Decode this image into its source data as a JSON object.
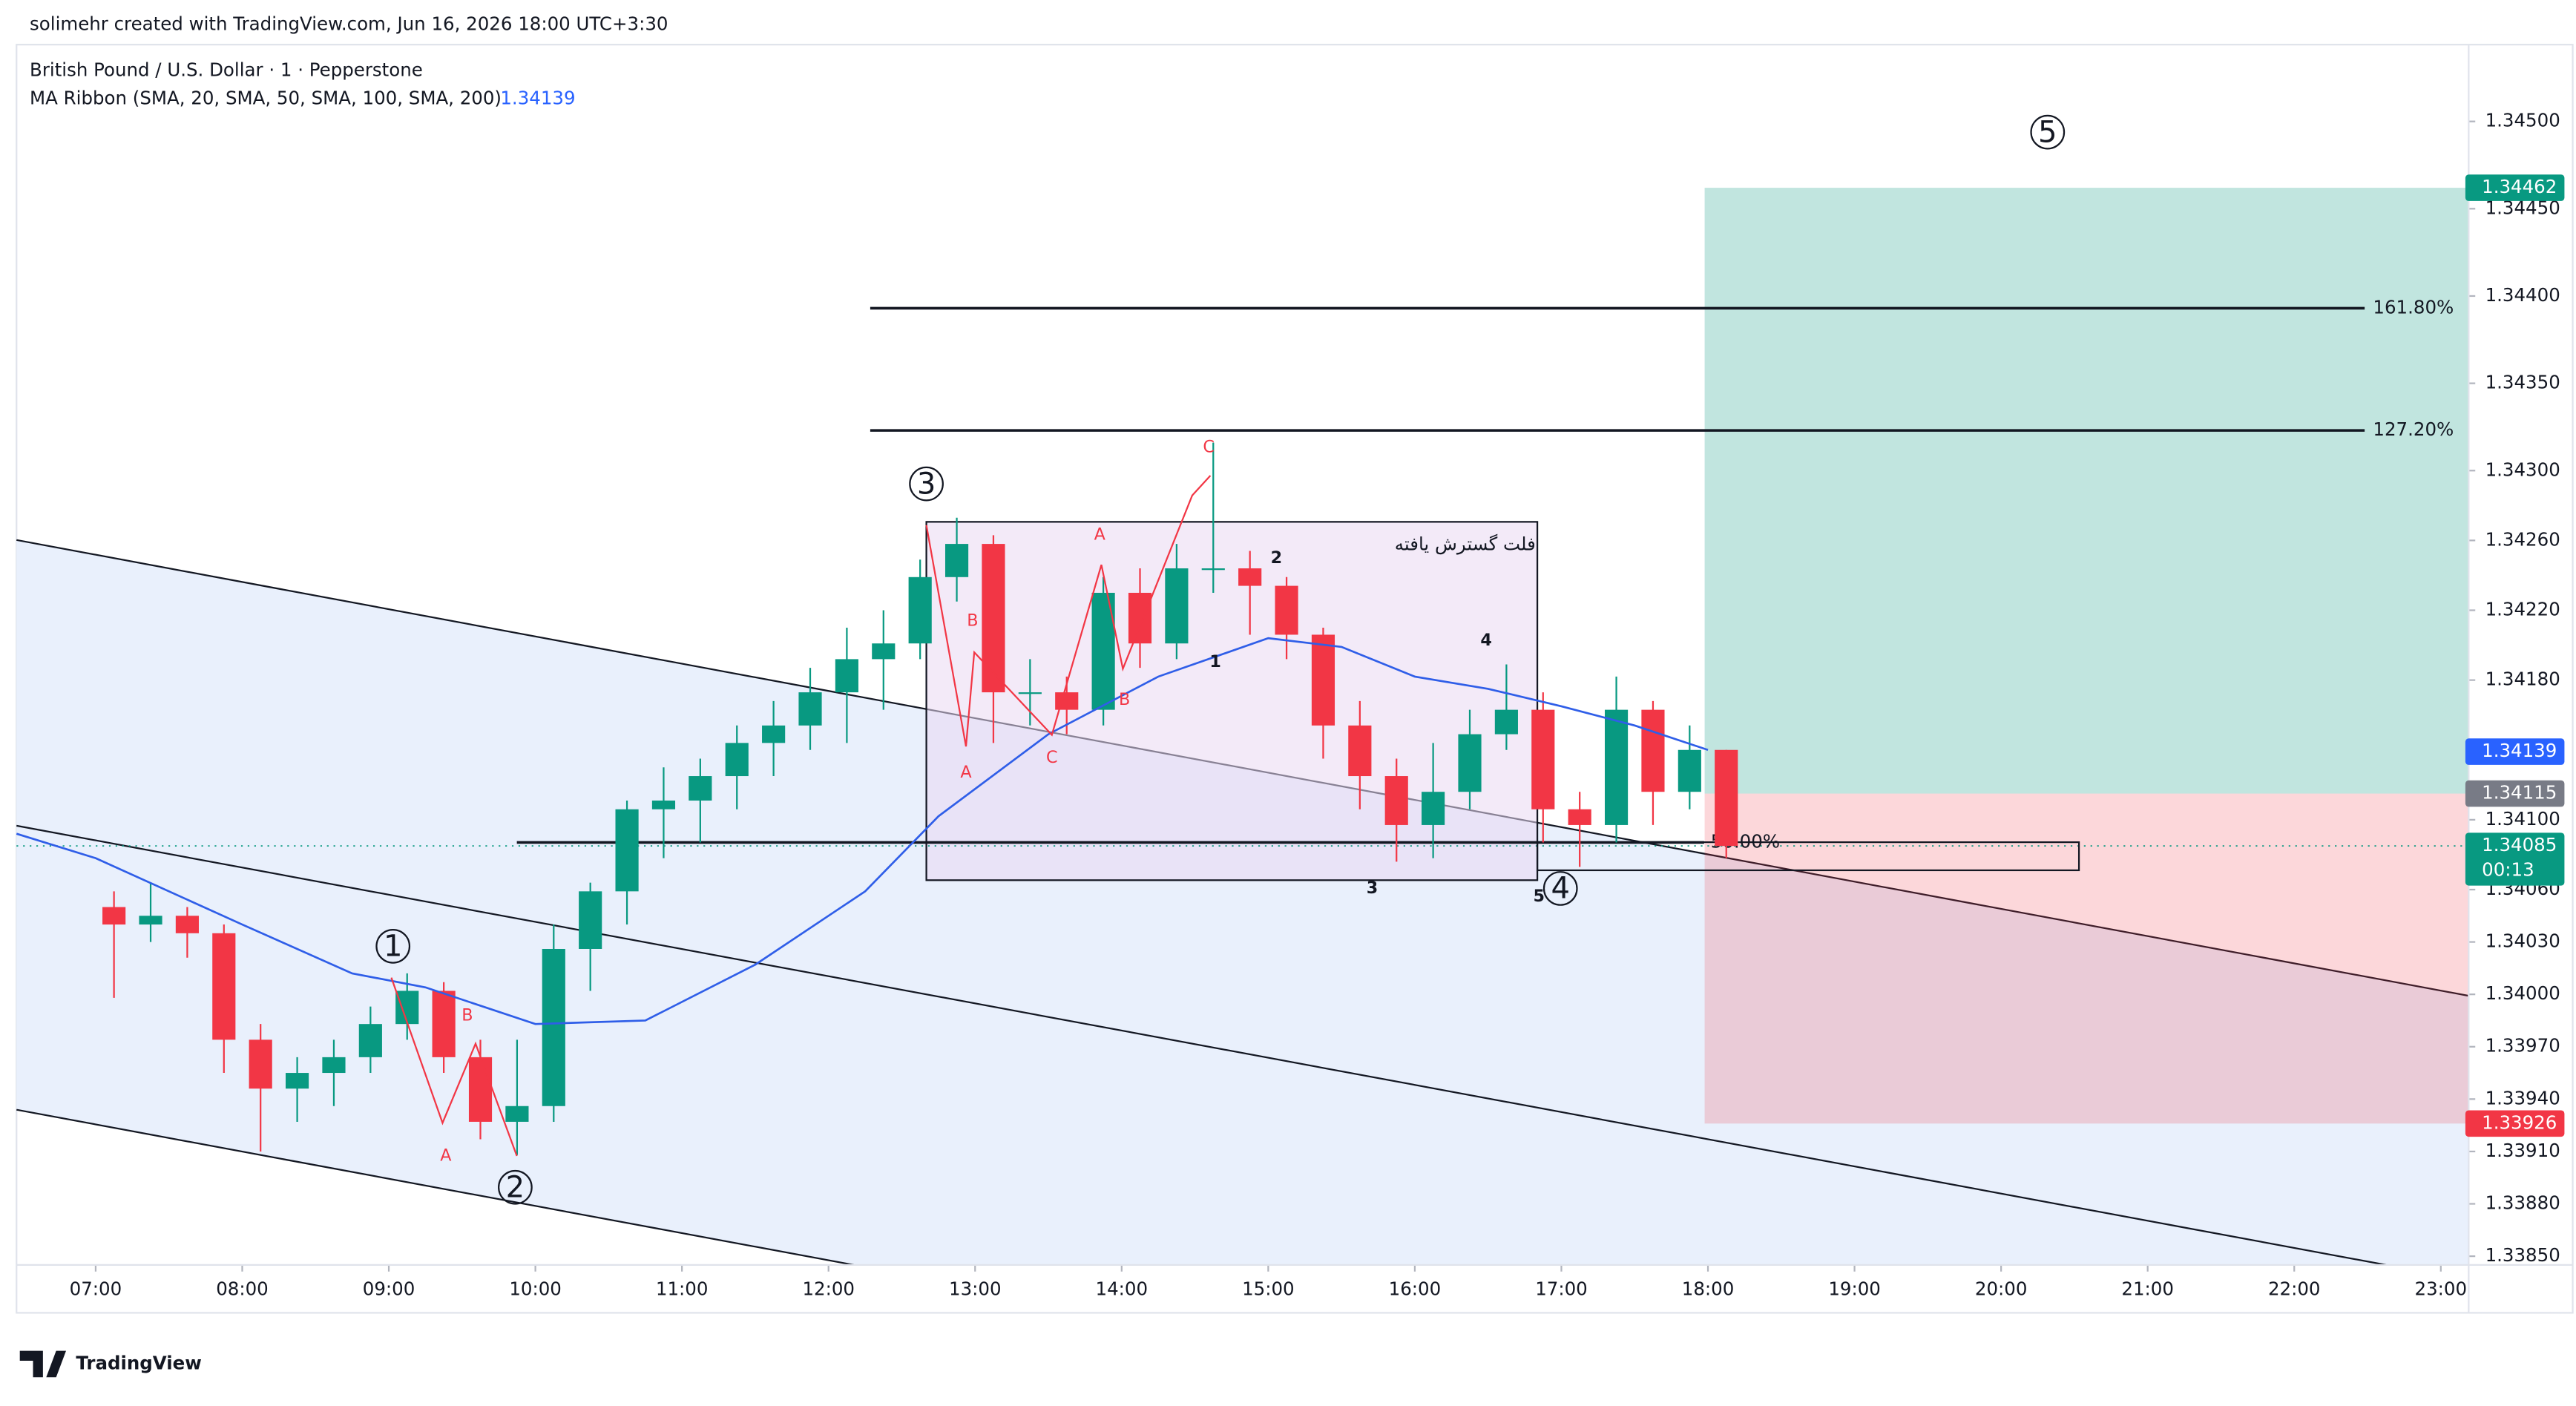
{
  "header": {
    "credit": "solimehr created with TradingView.com, Jun 16, 2026 18:00 UTC+3:30",
    "logo": "TradingView"
  },
  "chart_data": {
    "type": "candlestick",
    "title": "British Pound / U.S. Dollar · 1 · Pepperstone",
    "up_color": "#089981",
    "down_color": "#f23645",
    "xlim": [
      6.46,
      23.19
    ],
    "ylim": [
      1.33845,
      1.34544
    ],
    "xticks": [
      {
        "value": 7,
        "label": "07:00"
      },
      {
        "value": 8,
        "label": "08:00"
      },
      {
        "value": 9,
        "label": "09:00"
      },
      {
        "value": 10,
        "label": "10:00"
      },
      {
        "value": 11,
        "label": "11:00"
      },
      {
        "value": 12,
        "label": "12:00"
      },
      {
        "value": 13,
        "label": "13:00"
      },
      {
        "value": 14,
        "label": "14:00"
      },
      {
        "value": 15,
        "label": "15:00"
      },
      {
        "value": 16,
        "label": "16:00"
      },
      {
        "value": 17,
        "label": "17:00"
      },
      {
        "value": 18,
        "label": "18:00"
      },
      {
        "value": 19,
        "label": "19:00"
      },
      {
        "value": 20,
        "label": "20:00"
      },
      {
        "value": 21,
        "label": "21:00"
      },
      {
        "value": 22,
        "label": "22:00"
      },
      {
        "value": 23,
        "label": "23:00"
      }
    ],
    "yticks": [
      {
        "value": 1.345,
        "label": "1.34500"
      },
      {
        "value": 1.3445,
        "label": "1.34450"
      },
      {
        "value": 1.344,
        "label": "1.34400"
      },
      {
        "value": 1.3435,
        "label": "1.34350"
      },
      {
        "value": 1.343,
        "label": "1.34300"
      },
      {
        "value": 1.3426,
        "label": "1.34260"
      },
      {
        "value": 1.3422,
        "label": "1.34220"
      },
      {
        "value": 1.3418,
        "label": "1.34180"
      },
      {
        "value": 1.341,
        "label": "1.34100"
      },
      {
        "value": 1.3406,
        "label": "1.34060"
      },
      {
        "value": 1.3403,
        "label": "1.34030"
      },
      {
        "value": 1.34,
        "label": "1.34000"
      },
      {
        "value": 1.3397,
        "label": "1.33970"
      },
      {
        "value": 1.3394,
        "label": "1.33940"
      },
      {
        "value": 1.3391,
        "label": "1.33910"
      },
      {
        "value": 1.3388,
        "label": "1.33880"
      },
      {
        "value": 1.3385,
        "label": "1.33850"
      }
    ],
    "x": [
      7,
      7.25,
      7.5,
      7.75,
      8,
      8.25,
      8.5,
      8.75,
      9,
      9.25,
      9.5,
      9.75,
      10,
      10.25,
      10.5,
      10.75,
      11,
      11.25,
      11.5,
      11.75,
      12,
      12.25,
      12.5,
      12.75,
      13,
      13.25,
      13.5,
      13.75,
      14,
      14.25,
      14.5,
      14.75,
      15,
      15.25,
      15.5,
      15.75,
      16,
      16.25,
      16.5,
      16.75,
      17,
      17.25,
      17.5,
      17.75,
      18
    ],
    "open": [
      1.3405,
      1.3404,
      1.34045,
      1.34035,
      1.33974,
      1.33946,
      1.33955,
      1.33964,
      1.33983,
      1.34002,
      1.33964,
      1.33927,
      1.33936,
      1.34026,
      1.34059,
      1.34106,
      1.34111,
      1.34125,
      1.34144,
      1.34154,
      1.34173,
      1.34192,
      1.34201,
      1.34239,
      1.34258,
      1.34173,
      1.34173,
      1.34163,
      1.3423,
      1.34201,
      1.34244,
      1.34244,
      1.34234,
      1.34206,
      1.34154,
      1.34125,
      1.34097,
      1.34116,
      1.34149,
      1.34163,
      1.34106,
      1.34097,
      1.34163,
      1.34116,
      1.3414
    ],
    "high": [
      1.34059,
      1.34064,
      1.3405,
      1.3404,
      1.33983,
      1.33964,
      1.33974,
      1.33993,
      1.34012,
      1.34007,
      1.33974,
      1.33974,
      1.3404,
      1.34064,
      1.34111,
      1.3413,
      1.34135,
      1.34154,
      1.34168,
      1.34187,
      1.3421,
      1.3422,
      1.34249,
      1.34273,
      1.34263,
      1.34192,
      1.34182,
      1.34239,
      1.34244,
      1.34258,
      1.34316,
      1.34254,
      1.34239,
      1.3421,
      1.34168,
      1.34135,
      1.34144,
      1.34163,
      1.34189,
      1.34173,
      1.34116,
      1.34182,
      1.34168,
      1.34154,
      1.3414
    ],
    "low": [
      1.33998,
      1.3403,
      1.34021,
      1.33955,
      1.3391,
      1.33927,
      1.33936,
      1.33955,
      1.33974,
      1.33955,
      1.33917,
      1.33908,
      1.33927,
      1.34002,
      1.3404,
      1.34078,
      1.34087,
      1.34106,
      1.34125,
      1.3414,
      1.34144,
      1.34163,
      1.34192,
      1.34225,
      1.34144,
      1.34154,
      1.34149,
      1.34154,
      1.34187,
      1.34192,
      1.3423,
      1.34206,
      1.34192,
      1.34135,
      1.34106,
      1.34076,
      1.34078,
      1.34106,
      1.3414,
      1.34087,
      1.34073,
      1.34087,
      1.34097,
      1.34106,
      1.34078
    ],
    "close": [
      1.3404,
      1.34045,
      1.34035,
      1.33974,
      1.33946,
      1.33955,
      1.33964,
      1.33983,
      1.34002,
      1.33964,
      1.33927,
      1.33936,
      1.34026,
      1.34059,
      1.34106,
      1.34111,
      1.34125,
      1.34144,
      1.34154,
      1.34173,
      1.34192,
      1.34201,
      1.34239,
      1.34258,
      1.34173,
      1.34173,
      1.34163,
      1.3423,
      1.34201,
      1.34244,
      1.34244,
      1.34234,
      1.34206,
      1.34154,
      1.34125,
      1.34097,
      1.34116,
      1.34149,
      1.34163,
      1.34106,
      1.34097,
      1.34163,
      1.34116,
      1.3414,
      1.34085
    ],
    "ma": {
      "label": "MA Ribbon (SMA, 20, SMA, 50, SMA, 100, SMA, 200)",
      "last": 1.34139,
      "color": "#2f5ee8",
      "x": [
        6.46,
        7,
        8,
        8.75,
        9.25,
        10,
        10.75,
        11.5,
        12.25,
        12.75,
        13.5,
        14.25,
        15,
        15.5,
        16,
        16.5,
        17,
        17.5,
        18
      ],
      "values": [
        1.34092,
        1.34078,
        1.3404,
        1.34012,
        1.34004,
        1.33983,
        1.33985,
        1.34017,
        1.34059,
        1.34102,
        1.34149,
        1.34182,
        1.34204,
        1.34199,
        1.34182,
        1.34175,
        1.34165,
        1.34154,
        1.3414
      ]
    },
    "price_tags": [
      {
        "value": 1.34462,
        "color": "#089981"
      },
      {
        "value": 1.34139,
        "color": "#2962ff"
      },
      {
        "value": 1.34115,
        "color": "#787b86"
      },
      {
        "value": 1.34085,
        "color": "#089981"
      },
      {
        "value": 1.33926,
        "color": "#f23645"
      }
    ],
    "countdown": "00:13",
    "fib_levels": [
      {
        "value": 1.34393,
        "label": "161.80%"
      },
      {
        "value": 1.34323,
        "label": "127.20%"
      },
      {
        "value": 1.34087,
        "label": "50.00%"
      }
    ],
    "waves": {
      "major": [
        "1",
        "2",
        "3",
        "4",
        "5"
      ],
      "letters": [
        "A",
        "B",
        "A",
        "B",
        "C",
        "A",
        "B",
        "C"
      ],
      "minor": [
        "1",
        "2",
        "3",
        "4",
        "5"
      ],
      "box_label": "فلت گسترش یافته"
    }
  }
}
